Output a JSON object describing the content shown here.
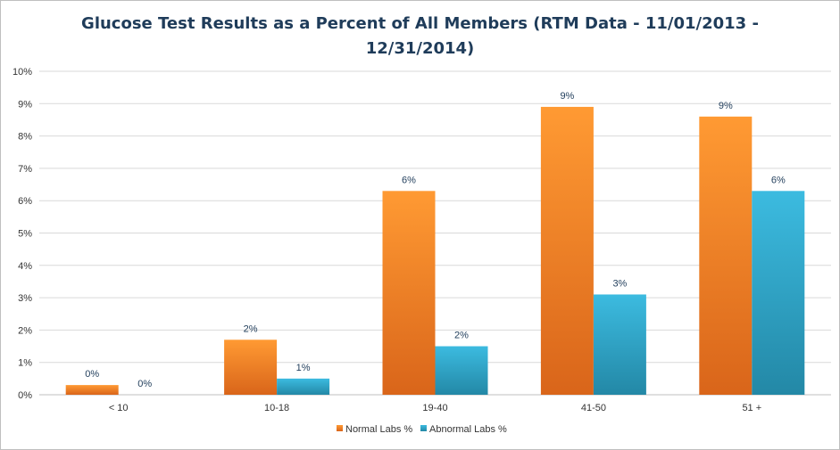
{
  "chart_data": {
    "type": "bar",
    "title": "Glucose Test Results as a Percent of All Members (RTM Data - 11/01/2013 - 12/31/2014)",
    "title_line1": "Glucose Test Results as a Percent of All Members (RTM Data - 11/01/2013 -",
    "title_line2": "12/31/2014)",
    "categories": [
      "< 10",
      "10-18",
      "19-40",
      "41-50",
      "51 +"
    ],
    "series": [
      {
        "name": "Normal Labs %",
        "values": [
          0.3,
          1.7,
          6.3,
          8.9,
          8.6
        ],
        "data_labels": [
          "0%",
          "2%",
          "6%",
          "9%",
          "9%"
        ],
        "color": "#f0821e"
      },
      {
        "name": "Abnormal Labs %",
        "values": [
          0.0,
          0.5,
          1.5,
          3.1,
          6.3
        ],
        "data_labels": [
          "0%",
          "1%",
          "2%",
          "3%",
          "6%"
        ],
        "color": "#2ea9c9"
      }
    ],
    "yticks": [
      "0%",
      "1%",
      "2%",
      "3%",
      "4%",
      "5%",
      "6%",
      "7%",
      "8%",
      "9%",
      "10%"
    ],
    "ylim": [
      0,
      10
    ],
    "xlabel": "",
    "ylabel": "",
    "grid": true,
    "legend_position": "bottom"
  }
}
